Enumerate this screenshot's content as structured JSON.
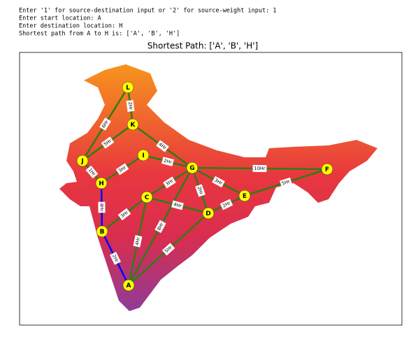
{
  "console": [
    "Enter '1' for source-destination input or '2' for source-weight input: 1",
    "Enter start location: A",
    "Enter destination location: H",
    "Shortest path from A to H is: ['A', 'B', 'H']"
  ],
  "title": "Shortest Path: ['A', 'B', 'H']",
  "nodes": [
    "L",
    "K",
    "J",
    "I",
    "G",
    "H",
    "C",
    "E",
    "F",
    "D",
    "B",
    "A"
  ],
  "edges": [
    {
      "from": "L",
      "to": "K",
      "label": "2Hr",
      "color": "#2e7d12"
    },
    {
      "from": "L",
      "to": "J",
      "label": "6Hr",
      "color": "#2e7d12"
    },
    {
      "from": "K",
      "to": "J",
      "label": "5Hr",
      "color": "#2e7d12"
    },
    {
      "from": "K",
      "to": "G",
      "label": "4Hr",
      "color": "#2e7d12"
    },
    {
      "from": "I",
      "to": "G",
      "label": "2Hr",
      "color": "#2e7d12"
    },
    {
      "from": "J",
      "to": "H",
      "label": "1Hr",
      "color": "#2e7d12"
    },
    {
      "from": "H",
      "to": "I",
      "label": "3Hr",
      "color": "#2e7d12"
    },
    {
      "from": "G",
      "to": "F",
      "label": "10Hr",
      "color": "#2e7d12"
    },
    {
      "from": "G",
      "to": "C",
      "label": "3Hr",
      "color": "#2e7d12"
    },
    {
      "from": "G",
      "to": "E",
      "label": "3Hr",
      "color": "#2e7d12"
    },
    {
      "from": "G",
      "to": "D",
      "label": "2Hr",
      "color": "#2e7d12"
    },
    {
      "from": "E",
      "to": "F",
      "label": "5Hr",
      "color": "#2e7d12"
    },
    {
      "from": "D",
      "to": "E",
      "label": "2Hr",
      "color": "#2e7d12"
    },
    {
      "from": "C",
      "to": "D",
      "label": "4Hr",
      "color": "#2e7d12"
    },
    {
      "from": "H",
      "to": "B",
      "label": "4Hr",
      "color": "#0000ff"
    },
    {
      "from": "C",
      "to": "B",
      "label": "3Hr",
      "color": "#2e7d12"
    },
    {
      "from": "B",
      "to": "A",
      "label": "2Hr",
      "color": "#0000ff"
    },
    {
      "from": "C",
      "to": "A",
      "label": "4Hr",
      "color": "#2e7d12"
    },
    {
      "from": "G",
      "to": "A",
      "label": "8Hr",
      "color": "#2e7d12"
    },
    {
      "from": "D",
      "to": "A",
      "label": "5Hr",
      "color": "#2e7d12"
    }
  ]
}
